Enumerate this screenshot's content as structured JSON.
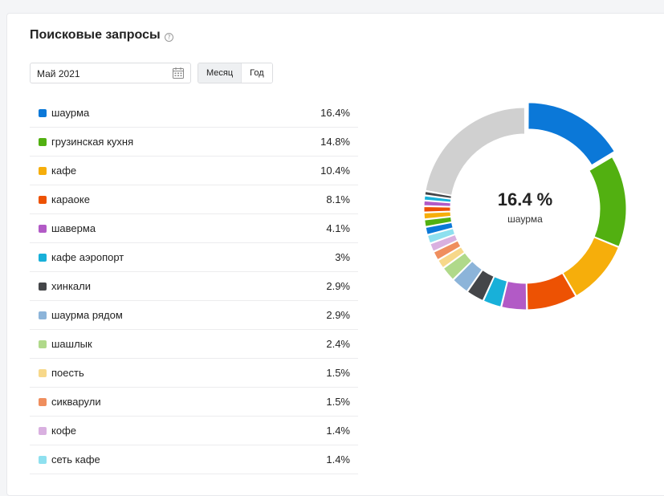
{
  "widget": {
    "title": "Поисковые запросы",
    "help_icon": "?"
  },
  "controls": {
    "date_value": "Май 2021",
    "period_buttons": [
      {
        "label": "Месяц",
        "active": true
      },
      {
        "label": "Год",
        "active": false
      }
    ]
  },
  "center": {
    "value": "16.4 %",
    "label": "шаурма"
  },
  "legend": [
    {
      "label": "шаурма",
      "value": "16.4%"
    },
    {
      "label": "грузинская кухня",
      "value": "14.8%"
    },
    {
      "label": "кафе",
      "value": "10.4%"
    },
    {
      "label": "караоке",
      "value": "8.1%"
    },
    {
      "label": "шаверма",
      "value": "4.1%"
    },
    {
      "label": "кафе аэропорт",
      "value": "3%"
    },
    {
      "label": "хинкали",
      "value": "2.9%"
    },
    {
      "label": "шаурма рядом",
      "value": "2.9%"
    },
    {
      "label": "шашлык",
      "value": "2.4%"
    },
    {
      "label": "поесть",
      "value": "1.5%"
    },
    {
      "label": "сикварули",
      "value": "1.5%"
    },
    {
      "label": "кофе",
      "value": "1.4%"
    },
    {
      "label": "сеть кафе",
      "value": "1.4%"
    }
  ],
  "chart_data": {
    "type": "pie",
    "donut": true,
    "highlighted": "шаурма",
    "slices": [
      {
        "name": "шаурма",
        "value": 16.4,
        "color": "#0b78d8"
      },
      {
        "name": "грузинская кухня",
        "value": 14.8,
        "color": "#52b011"
      },
      {
        "name": "кафе",
        "value": 10.4,
        "color": "#f6ae0b"
      },
      {
        "name": "караоке",
        "value": 8.1,
        "color": "#ed5203"
      },
      {
        "name": "шаверма",
        "value": 4.1,
        "color": "#b25ac6"
      },
      {
        "name": "кафе аэропорт",
        "value": 3,
        "color": "#18b0d9"
      },
      {
        "name": "хинкали",
        "value": 2.9,
        "color": "#444649"
      },
      {
        "name": "шаурма рядом",
        "value": 2.9,
        "color": "#8cb4d9"
      },
      {
        "name": "шашлык",
        "value": 2.4,
        "color": "#b0d98a"
      },
      {
        "name": "поесть",
        "value": 1.5,
        "color": "#f7d88a"
      },
      {
        "name": "сикварули",
        "value": 1.5,
        "color": "#ef8e5e"
      },
      {
        "name": "кофе",
        "value": 1.4,
        "color": "#d9b0e0"
      },
      {
        "name": "сеть кафе",
        "value": 1.4,
        "color": "#8ee0ef"
      },
      {
        "value": 1.3,
        "color": "#0b78d8"
      },
      {
        "value": 1.2,
        "color": "#52b011"
      },
      {
        "value": 1.1,
        "color": "#f6ae0b"
      },
      {
        "value": 1.0,
        "color": "#ed5203"
      },
      {
        "value": 0.9,
        "color": "#b25ac6"
      },
      {
        "value": 0.8,
        "color": "#18b0d9"
      },
      {
        "value": 0.7,
        "color": "#444649"
      },
      {
        "value": 22.2,
        "color": "#d0d0d0"
      }
    ]
  }
}
